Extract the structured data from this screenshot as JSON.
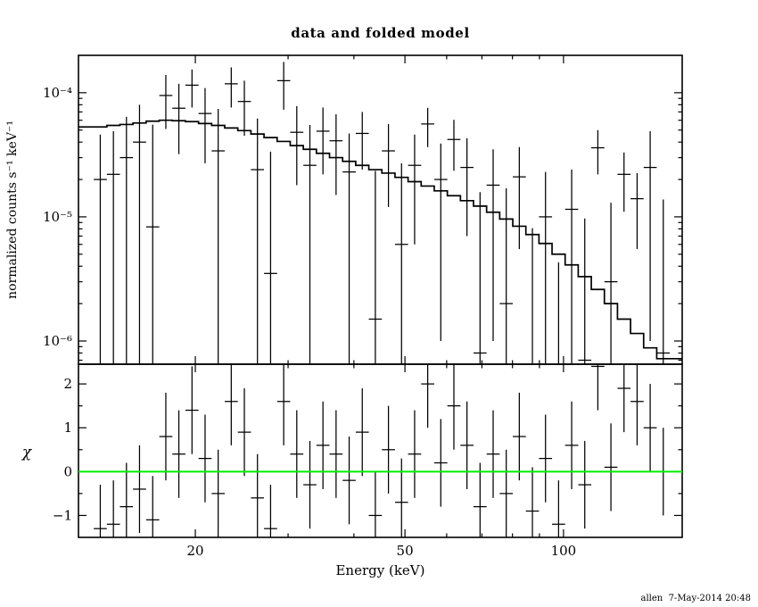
{
  "page": {
    "title": "data and folded model",
    "timestamp": "allen  7-May-2014 20:48"
  },
  "colors": {
    "background": "#ffffff",
    "foreground": "#000000",
    "zero_line": "#00ee00"
  },
  "axes": {
    "x": {
      "label": "Energy (keV)",
      "scale": "log",
      "min": 12,
      "max": 168,
      "major_ticks": [
        20,
        50,
        100
      ],
      "tick_labels": [
        "20",
        "50",
        "100"
      ],
      "minor_ticks": [
        30,
        40,
        60,
        70,
        80,
        90
      ]
    },
    "y_top": {
      "label": "normalized counts s⁻¹ keV⁻¹",
      "scale": "log",
      "min": 6.5e-07,
      "max": 0.0002,
      "major_ticks": [
        1e-06,
        1e-05,
        0.0001
      ],
      "tick_labels": [
        "10⁻⁶",
        "10⁻⁵",
        "10⁻⁴"
      ],
      "minor_ticks": [
        7e-07,
        8e-07,
        9e-07,
        2e-06,
        3e-06,
        4e-06,
        5e-06,
        6e-06,
        7e-06,
        8e-06,
        9e-06,
        2e-05,
        3e-05,
        4e-05,
        5e-05,
        6e-05,
        7e-05,
        8e-05,
        9e-05
      ]
    },
    "y_bottom": {
      "label": "χ",
      "scale": "linear",
      "min": -1.5,
      "max": 2.45,
      "major_ticks": [
        -1,
        0,
        1,
        2
      ],
      "tick_labels": [
        "−1",
        "0",
        "1",
        "2"
      ],
      "minor_ticks": [
        -0.5,
        0.5,
        1.5
      ]
    }
  },
  "chart_data": {
    "type": "line",
    "title": "data and folded model",
    "xlabel": "Energy (keV)",
    "xscale": "log",
    "xlim": [
      12,
      168
    ],
    "bin_half_width_frac": 0.029,
    "panels": [
      {
        "name": "spectrum",
        "ylabel": "normalized counts s⁻¹ keV⁻¹",
        "yscale": "log",
        "ylim": [
          6.5e-07,
          0.0002
        ],
        "model": {
          "x": [
            13.2,
            13.98,
            14.8,
            15.67,
            16.6,
            17.58,
            18.61,
            19.71,
            20.87,
            22.1,
            23.4,
            24.78,
            26.24,
            27.79,
            29.43,
            31.16,
            33.0,
            34.94,
            37.0,
            39.18,
            41.49,
            43.93,
            46.52,
            49.26,
            52.16,
            55.23,
            58.48,
            61.93,
            65.57,
            69.43,
            73.52,
            77.85,
            82.43,
            87.29,
            92.43,
            97.87,
            103.63,
            109.73,
            116.19,
            123.03,
            130.27,
            137.94,
            146.06,
            154.66
          ],
          "y": [
            5.3e-05,
            5.45e-05,
            5.55e-05,
            5.7e-05,
            5.9e-05,
            6e-05,
            5.95e-05,
            5.85e-05,
            5.65e-05,
            5.45e-05,
            5.2e-05,
            4.95e-05,
            4.65e-05,
            4.35e-05,
            4.05e-05,
            3.75e-05,
            3.5e-05,
            3.25e-05,
            3e-05,
            2.8e-05,
            2.6e-05,
            2.4e-05,
            2.25e-05,
            2.08e-05,
            1.92e-05,
            1.77e-05,
            1.62e-05,
            1.48e-05,
            1.35e-05,
            1.22e-05,
            1.09e-05,
            9.6e-06,
            8.4e-06,
            7.2e-06,
            6.1e-06,
            5e-06,
            4.1e-06,
            3.3e-06,
            2.6e-06,
            2e-06,
            1.5e-06,
            1.15e-06,
            8.8e-07,
            7.2e-07
          ]
        },
        "points": {
          "e": [
            13.2,
            13.98,
            14.8,
            15.67,
            16.6,
            17.58,
            18.61,
            19.71,
            20.87,
            22.1,
            23.4,
            24.78,
            26.24,
            27.79,
            29.43,
            31.16,
            33.0,
            34.94,
            37.0,
            39.18,
            41.49,
            43.93,
            46.52,
            49.26,
            52.16,
            55.23,
            58.48,
            61.93,
            65.57,
            69.43,
            73.52,
            77.85,
            82.43,
            87.29,
            92.43,
            97.87,
            103.63,
            109.73,
            116.19,
            123.03,
            130.27,
            137.94,
            146.06,
            154.66
          ],
          "y": [
            2e-05,
            2.2e-05,
            3e-05,
            4e-05,
            8.3e-06,
            9.5e-05,
            7.5e-05,
            0.000115,
            6.8e-05,
            3.4e-05,
            0.000118,
            8.5e-05,
            2.4e-05,
            3.5e-06,
            0.000125,
            4.8e-05,
            2.6e-05,
            4.9e-05,
            4.1e-05,
            2.3e-05,
            4.7e-05,
            1.5e-06,
            3.4e-05,
            6e-06,
            2.6e-05,
            5.6e-05,
            2e-05,
            4.2e-05,
            2.5e-05,
            8e-07,
            1.8e-05,
            2e-06,
            2.1e-05,
            6e-07,
            1e-05,
            4e-07,
            1.15e-05,
            7e-07,
            3.6e-05,
            3e-06,
            2.2e-05,
            1.4e-05,
            2.5e-05,
            8e-07
          ],
          "yerr": [
            2.6e-05,
            2.7e-05,
            3.4e-05,
            4e-05,
            4.7e-05,
            4.4e-05,
            4.3e-05,
            3.9e-05,
            4.1e-05,
            4e-05,
            4.2e-05,
            4e-05,
            3.8e-05,
            3e-05,
            5.2e-05,
            3e-05,
            2.9e-05,
            2.7e-05,
            2.6e-05,
            2.4e-05,
            2.3e-05,
            2.2e-05,
            2.2e-05,
            2.1e-05,
            2e-05,
            1.95e-05,
            1.9e-05,
            1.85e-05,
            1.8e-05,
            1.5e-05,
            1.7e-05,
            1.5e-05,
            1.55e-05,
            7.5e-06,
            1.3e-05,
            3.9e-06,
            1.25e-05,
            9e-06,
            1.4e-05,
            1e-05,
            1.1e-05,
            8.5e-06,
            2.4e-05,
            1.3e-05
          ],
          "chi": [
            -1.3,
            -1.2,
            -0.8,
            -0.4,
            -1.1,
            0.8,
            0.4,
            1.4,
            0.3,
            -0.5,
            1.6,
            0.9,
            -0.6,
            -1.3,
            1.6,
            0.4,
            -0.3,
            0.6,
            0.4,
            -0.2,
            0.9,
            -1.0,
            0.5,
            -0.7,
            0.4,
            2.0,
            0.2,
            1.5,
            0.6,
            -0.8,
            0.4,
            -0.5,
            0.8,
            -0.9,
            0.3,
            -1.2,
            0.6,
            -0.3,
            2.4,
            0.1,
            1.9,
            1.6,
            1.0,
            0.0
          ]
        }
      },
      {
        "name": "residuals",
        "ylabel": "χ",
        "yscale": "linear",
        "ylim": [
          -1.5,
          2.45
        ],
        "zero_line": 0,
        "chi_error_bar": 1.0,
        "points_source": "spectrum.points.chi"
      }
    ]
  }
}
